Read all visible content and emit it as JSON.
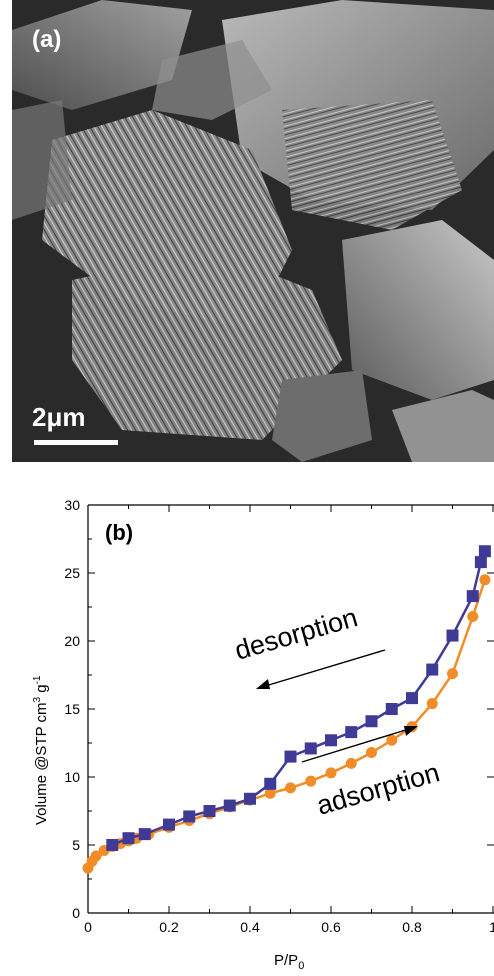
{
  "figure": {
    "panel_a": {
      "label": "(a)",
      "scale_bar": "2μm"
    }
  },
  "chart_data": {
    "type": "line",
    "panel_label": "(b)",
    "xlabel": "P/P",
    "xlabel_sub": "0",
    "ylabel": "Volume @STP cm",
    "ylabel_sup1": "3",
    "ylabel_mid": " g",
    "ylabel_sup2": "-1",
    "xlim": [
      0,
      1.0
    ],
    "ylim": [
      0,
      30
    ],
    "xticks": [
      "0",
      "0.2",
      "0.4",
      "0.6",
      "0.8",
      "1"
    ],
    "yticks": [
      "0",
      "5",
      "10",
      "15",
      "20",
      "25",
      "30"
    ],
    "grid": false,
    "annotations": [
      "desorption",
      "adsorption"
    ],
    "colors": {
      "adsorption": "#f28c28",
      "desorption": "#3f3a96"
    },
    "series": [
      {
        "marker": "circle",
        "x": [
          0.0,
          0.01,
          0.02,
          0.04,
          0.06,
          0.08,
          0.1,
          0.12,
          0.15,
          0.2,
          0.25,
          0.3,
          0.35,
          0.4,
          0.45,
          0.5,
          0.55,
          0.6,
          0.65,
          0.7,
          0.75,
          0.8,
          0.85,
          0.9,
          0.95,
          0.98
        ],
        "values": [
          3.3,
          3.8,
          4.2,
          4.6,
          4.9,
          5.1,
          5.3,
          5.5,
          5.8,
          6.3,
          6.8,
          7.3,
          7.8,
          8.3,
          8.8,
          9.2,
          9.7,
          10.3,
          11.0,
          11.8,
          12.7,
          13.7,
          15.4,
          17.6,
          21.8,
          24.5
        ]
      },
      {
        "marker": "square",
        "x": [
          0.98,
          0.97,
          0.95,
          0.9,
          0.85,
          0.8,
          0.75,
          0.7,
          0.65,
          0.6,
          0.55,
          0.5,
          0.45,
          0.4,
          0.35,
          0.3,
          0.25,
          0.2,
          0.14,
          0.1,
          0.06
        ],
        "values": [
          26.6,
          25.8,
          23.3,
          20.4,
          17.9,
          15.8,
          15.0,
          14.1,
          13.3,
          12.7,
          12.1,
          11.5,
          9.5,
          8.4,
          7.9,
          7.5,
          7.1,
          6.5,
          5.8,
          5.5,
          5.0
        ]
      }
    ]
  }
}
